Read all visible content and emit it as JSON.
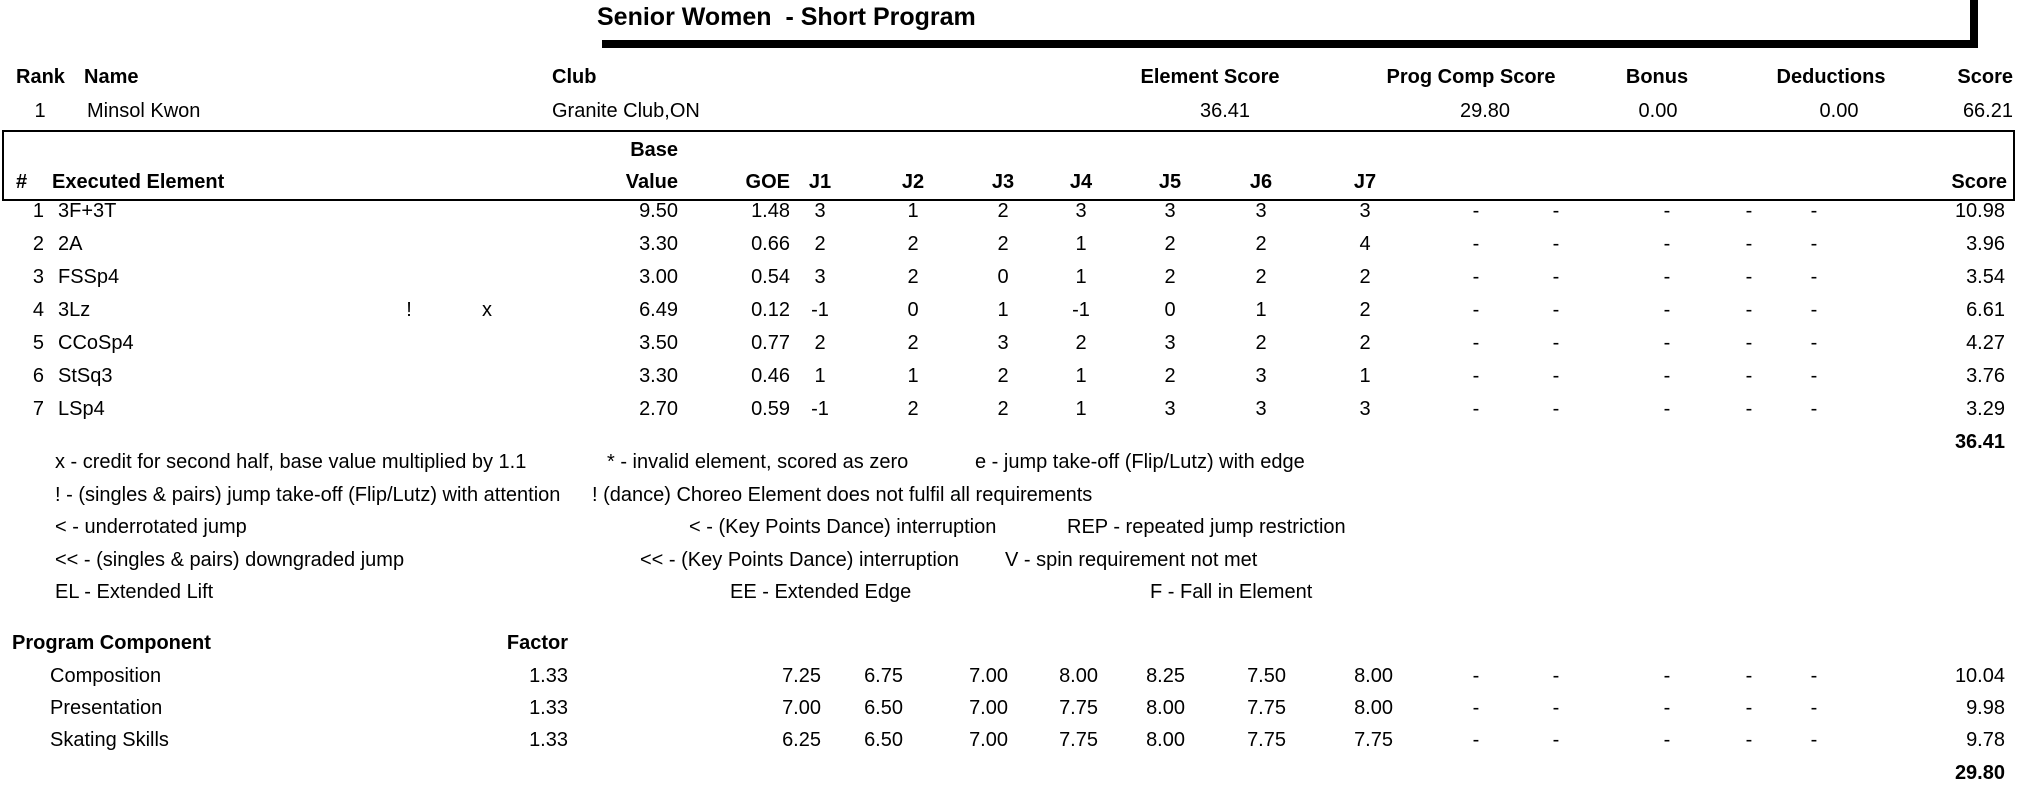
{
  "title": "Senior Women  - Short Program",
  "empty_judge_mark": "-",
  "summary": {
    "headers": {
      "rank": "Rank",
      "name": "Name",
      "club": "Club",
      "element_score": "Element Score",
      "prog_comp_score": "Prog Comp Score",
      "bonus": "Bonus",
      "deductions": "Deductions",
      "score": "Score"
    },
    "values": {
      "rank": "1",
      "name": "Minsol Kwon",
      "club": "Granite Club,ON",
      "element_score": "36.41",
      "prog_comp_score": "29.80",
      "bonus": "0.00",
      "deductions": "0.00",
      "score": "66.21"
    }
  },
  "elements": {
    "headers": {
      "num": "#",
      "executed_element": "Executed Element",
      "base_line1": "Base",
      "base_line2": "Value",
      "goe": "GOE",
      "judges": [
        "J1",
        "J2",
        "J3",
        "J4",
        "J5",
        "J6",
        "J7"
      ],
      "score": "Score"
    },
    "rows": [
      {
        "num": "1",
        "name": "3F+3T",
        "info": "",
        "credit": "",
        "base": "9.50",
        "goe": "1.48",
        "j": [
          "3",
          "1",
          "2",
          "3",
          "3",
          "3",
          "3"
        ],
        "score": "10.98"
      },
      {
        "num": "2",
        "name": "2A",
        "info": "",
        "credit": "",
        "base": "3.30",
        "goe": "0.66",
        "j": [
          "2",
          "2",
          "2",
          "1",
          "2",
          "2",
          "4"
        ],
        "score": "3.96"
      },
      {
        "num": "3",
        "name": "FSSp4",
        "info": "",
        "credit": "",
        "base": "3.00",
        "goe": "0.54",
        "j": [
          "3",
          "2",
          "0",
          "1",
          "2",
          "2",
          "2"
        ],
        "score": "3.54"
      },
      {
        "num": "4",
        "name": "3Lz",
        "info": "!",
        "credit": "x",
        "base": "6.49",
        "goe": "0.12",
        "j": [
          "-1",
          "0",
          "1",
          "-1",
          "0",
          "1",
          "2"
        ],
        "score": "6.61"
      },
      {
        "num": "5",
        "name": "CCoSp4",
        "info": "",
        "credit": "",
        "base": "3.50",
        "goe": "0.77",
        "j": [
          "2",
          "2",
          "3",
          "2",
          "3",
          "2",
          "2"
        ],
        "score": "4.27"
      },
      {
        "num": "6",
        "name": "StSq3",
        "info": "",
        "credit": "",
        "base": "3.30",
        "goe": "0.46",
        "j": [
          "1",
          "1",
          "2",
          "1",
          "2",
          "3",
          "1"
        ],
        "score": "3.76"
      },
      {
        "num": "7",
        "name": "LSp4",
        "info": "",
        "credit": "",
        "base": "2.70",
        "goe": "0.59",
        "j": [
          "-1",
          "2",
          "2",
          "1",
          "3",
          "3",
          "3"
        ],
        "score": "3.29"
      }
    ],
    "total": "36.41"
  },
  "legend": {
    "items": [
      {
        "text": "x - credit for second half, base value multiplied by 1.1"
      },
      {
        "text": "* - invalid element, scored as zero"
      },
      {
        "text": "e - jump take-off (Flip/Lutz) with edge"
      },
      {
        "text": "! - (singles & pairs) jump take-off (Flip/Lutz) with attention"
      },
      {
        "text": "! (dance) Choreo Element does not fulfil all requirements"
      },
      {
        "text": "< - underrotated jump"
      },
      {
        "text": "< - (Key Points Dance) interruption"
      },
      {
        "text": "REP - repeated jump restriction"
      },
      {
        "text": "<< - (singles & pairs) downgraded jump"
      },
      {
        "text": "<< - (Key Points Dance) interruption"
      },
      {
        "text": "V - spin requirement not met"
      },
      {
        "text": "EL - Extended Lift"
      },
      {
        "text": "EE - Extended Edge"
      },
      {
        "text": "F - Fall in Element"
      }
    ]
  },
  "components": {
    "headers": {
      "label": "Program Component",
      "factor": "Factor"
    },
    "rows": [
      {
        "label": "Composition",
        "factor": "1.33",
        "j": [
          "7.25",
          "6.75",
          "7.00",
          "8.00",
          "8.25",
          "7.50",
          "8.00"
        ],
        "score": "10.04"
      },
      {
        "label": "Presentation",
        "factor": "1.33",
        "j": [
          "7.00",
          "6.50",
          "7.00",
          "7.75",
          "8.00",
          "7.75",
          "8.00"
        ],
        "score": "9.98"
      },
      {
        "label": "Skating Skills",
        "factor": "1.33",
        "j": [
          "6.25",
          "6.50",
          "7.00",
          "7.75",
          "8.00",
          "7.75",
          "7.75"
        ],
        "score": "9.78"
      }
    ],
    "total": "29.80"
  }
}
